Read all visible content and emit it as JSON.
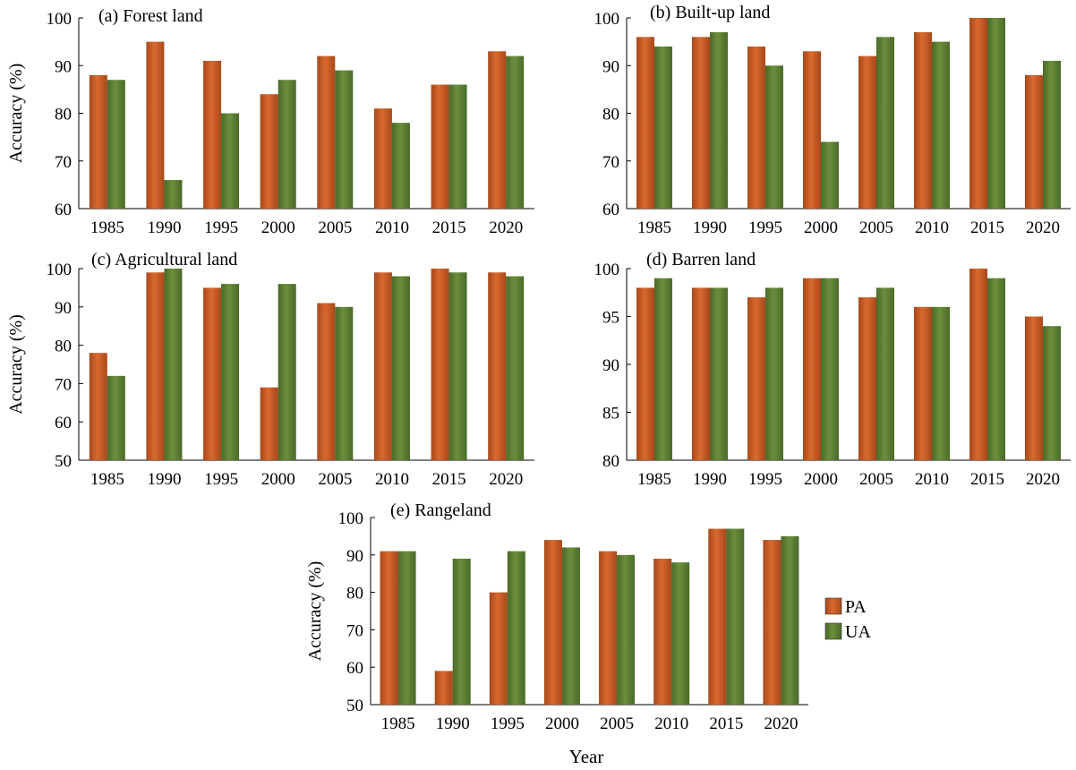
{
  "figure": {
    "x_axis_title": "Year",
    "legend": [
      {
        "key": "pa",
        "label": "PA"
      },
      {
        "key": "ua",
        "label": "UA"
      }
    ],
    "colors": {
      "pa": "#d9692e",
      "pa_dark": "#a8481b",
      "ua": "#6b8f3c",
      "ua_dark": "#4a6a28",
      "axis": "#000000"
    }
  },
  "chart_data": [
    {
      "type": "bar",
      "title": "(a) Forest land",
      "ylabel": "Accuracy (%)",
      "ylim": [
        60,
        100
      ],
      "yticks": [
        60,
        70,
        80,
        90,
        100
      ],
      "categories": [
        "1985",
        "1990",
        "1995",
        "2000",
        "2005",
        "2010",
        "2015",
        "2020"
      ],
      "series": [
        {
          "name": "PA",
          "values": [
            88,
            95,
            91,
            84,
            92,
            81,
            86,
            93
          ]
        },
        {
          "name": "UA",
          "values": [
            87,
            66,
            80,
            87,
            89,
            78,
            86,
            92
          ]
        }
      ]
    },
    {
      "type": "bar",
      "title": "(b) Built-up land",
      "ylabel": "",
      "ylim": [
        60,
        100
      ],
      "yticks": [
        60,
        70,
        80,
        90,
        100
      ],
      "categories": [
        "1985",
        "1990",
        "1995",
        "2000",
        "2005",
        "2010",
        "2015",
        "2020"
      ],
      "series": [
        {
          "name": "PA",
          "values": [
            96,
            96,
            94,
            93,
            92,
            97,
            100,
            88
          ]
        },
        {
          "name": "UA",
          "values": [
            94,
            97,
            90,
            74,
            96,
            95,
            100,
            91
          ]
        }
      ]
    },
    {
      "type": "bar",
      "title": "(c) Agricultural land",
      "ylabel": "Accuracy (%)",
      "ylim": [
        50,
        100
      ],
      "yticks": [
        50,
        60,
        70,
        80,
        90,
        100
      ],
      "categories": [
        "1985",
        "1990",
        "1995",
        "2000",
        "2005",
        "2010",
        "2015",
        "2020"
      ],
      "series": [
        {
          "name": "PA",
          "values": [
            78,
            99,
            95,
            69,
            91,
            99,
            100,
            99
          ]
        },
        {
          "name": "UA",
          "values": [
            72,
            100,
            96,
            96,
            90,
            98,
            99,
            98
          ]
        }
      ]
    },
    {
      "type": "bar",
      "title": "(d) Barren land",
      "ylabel": "",
      "ylim": [
        80,
        100
      ],
      "yticks": [
        80,
        85,
        90,
        95,
        100
      ],
      "categories": [
        "1985",
        "1990",
        "1995",
        "2000",
        "2005",
        "2010",
        "2015",
        "2020"
      ],
      "series": [
        {
          "name": "PA",
          "values": [
            98,
            98,
            97,
            99,
            97,
            96,
            100,
            95
          ]
        },
        {
          "name": "UA",
          "values": [
            99,
            98,
            98,
            99,
            98,
            96,
            99,
            94
          ]
        }
      ]
    },
    {
      "type": "bar",
      "title": "(e) Rangeland",
      "ylabel": "Accuracy (%)",
      "ylim": [
        50,
        100
      ],
      "yticks": [
        50,
        60,
        70,
        80,
        90,
        100
      ],
      "categories": [
        "1985",
        "1990",
        "1995",
        "2000",
        "2005",
        "2010",
        "2015",
        "2020"
      ],
      "series": [
        {
          "name": "PA",
          "values": [
            91,
            59,
            80,
            94,
            91,
            89,
            97,
            94
          ]
        },
        {
          "name": "UA",
          "values": [
            91,
            89,
            91,
            92,
            90,
            88,
            97,
            95
          ]
        }
      ]
    }
  ]
}
